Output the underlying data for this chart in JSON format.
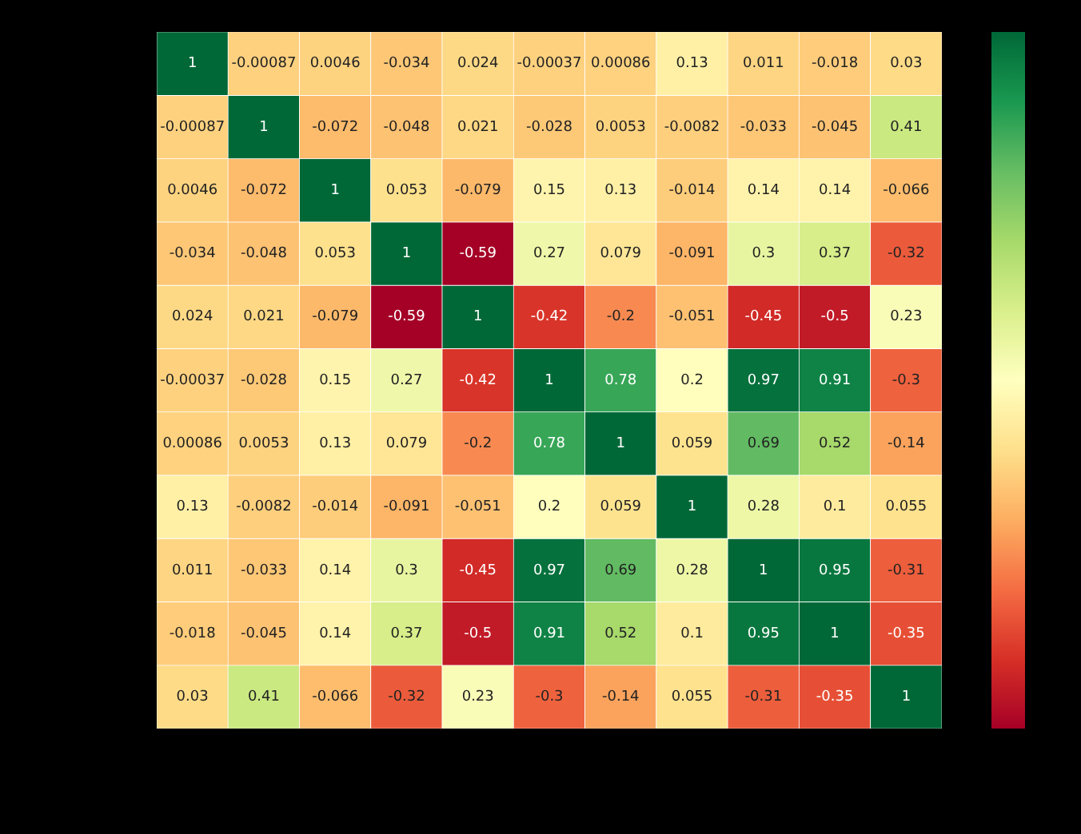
{
  "chart_data": {
    "type": "heatmap",
    "categories": [
      null,
      null,
      null,
      null,
      null,
      null,
      null,
      null,
      null,
      null,
      null
    ],
    "y_categories": [
      null,
      null,
      null,
      null,
      null,
      null,
      null,
      null,
      null,
      null,
      null
    ],
    "cells": [
      [
        1,
        -0.00087,
        0.0046,
        -0.034,
        0.024,
        -0.00037,
        0.00086,
        0.13,
        0.011,
        -0.018,
        0.03
      ],
      [
        -0.00087,
        1,
        -0.072,
        -0.048,
        0.021,
        -0.028,
        0.0053,
        -0.0082,
        -0.033,
        -0.045,
        0.41
      ],
      [
        0.0046,
        -0.072,
        1,
        0.053,
        -0.079,
        0.15,
        0.13,
        -0.014,
        0.14,
        0.14,
        -0.066
      ],
      [
        -0.034,
        -0.048,
        0.053,
        1,
        -0.59,
        0.27,
        0.079,
        -0.091,
        0.3,
        0.37,
        -0.32
      ],
      [
        0.024,
        0.021,
        -0.079,
        -0.59,
        1,
        -0.42,
        -0.2,
        -0.051,
        -0.45,
        -0.5,
        0.23
      ],
      [
        -0.00037,
        -0.028,
        0.15,
        0.27,
        -0.42,
        1,
        0.78,
        0.2,
        0.97,
        0.91,
        -0.3
      ],
      [
        0.00086,
        0.0053,
        0.13,
        0.079,
        -0.2,
        0.78,
        1,
        0.059,
        0.69,
        0.52,
        -0.14
      ],
      [
        0.13,
        -0.0082,
        -0.014,
        -0.091,
        -0.051,
        0.2,
        0.059,
        1,
        0.28,
        0.1,
        0.055
      ],
      [
        0.011,
        -0.033,
        0.14,
        0.3,
        -0.45,
        0.97,
        0.69,
        0.28,
        1,
        0.95,
        -0.31
      ],
      [
        -0.018,
        -0.045,
        0.14,
        0.37,
        -0.5,
        0.91,
        0.52,
        0.1,
        0.95,
        1,
        -0.35
      ],
      [
        0.03,
        0.41,
        -0.066,
        -0.32,
        0.23,
        -0.3,
        -0.14,
        0.055,
        -0.31,
        -0.35,
        1
      ]
    ],
    "data_labels": true
  }
}
